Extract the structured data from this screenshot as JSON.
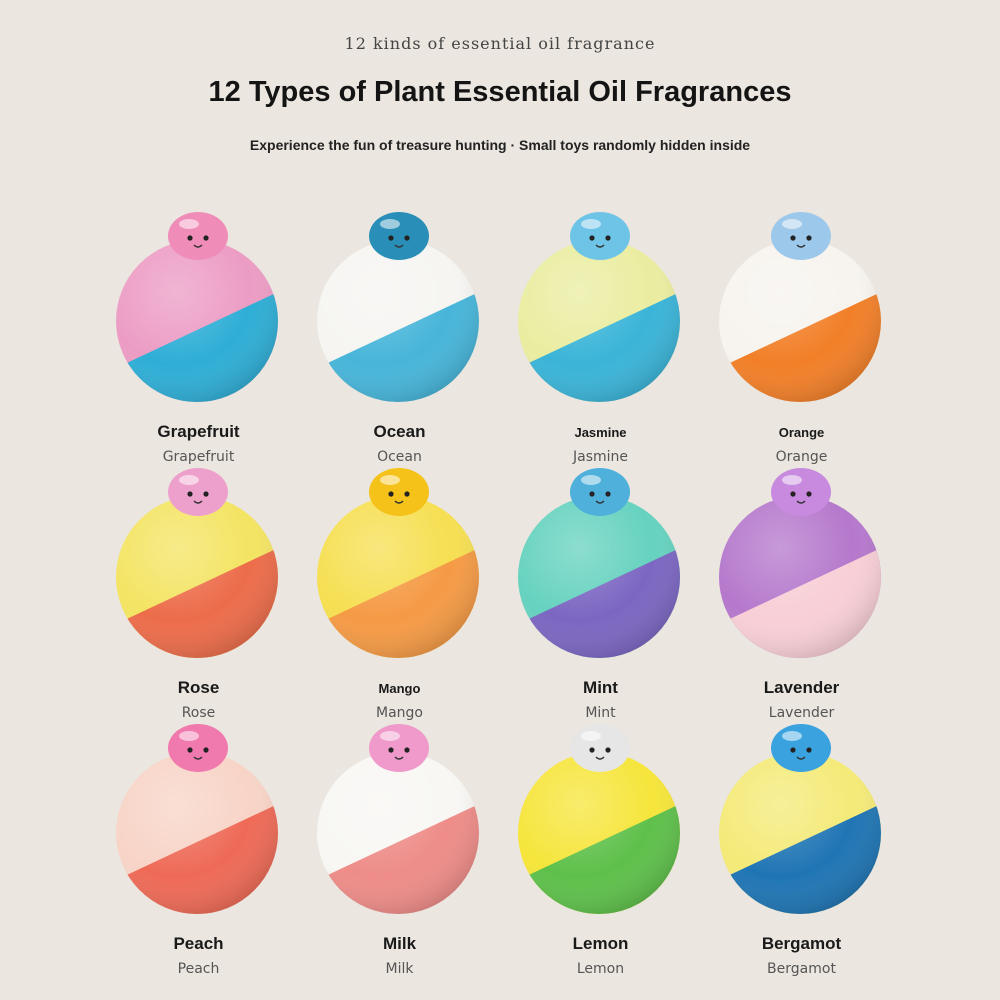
{
  "header": {
    "caption": "12 kinds of essential oil fragrance",
    "title": "12 Types of Plant Essential Oil Fragrances",
    "subtitle": "Experience the fun of treasure hunting · Small toys randomly hidden inside"
  },
  "products": [
    {
      "name": "Grapefruit",
      "name_secondary": "Grapefruit",
      "top_color": "#ec9cc4",
      "bottom_color": "#2eaed6",
      "toy": "pink-octopus",
      "toy_color": "#f08cb8"
    },
    {
      "name": "Ocean",
      "name_secondary": "Ocean",
      "top_color": "#f6f5f2",
      "bottom_color": "#47b5d9",
      "toy": "whale-shark",
      "toy_color": "#2a8fb8"
    },
    {
      "name": "Jasmine",
      "name_secondary": "Jasmine",
      "top_color": "#eaeda0",
      "bottom_color": "#3ab4d8",
      "toy": "dolphin",
      "toy_color": "#6ec4e6"
    },
    {
      "name": "Orange",
      "name_secondary": "Orange",
      "top_color": "#f7f4ef",
      "bottom_color": "#f27f28",
      "toy": "sea-bunny",
      "toy_color": "#9cc8ec"
    },
    {
      "name": "Rose",
      "name_secondary": "Rose",
      "top_color": "#f4e463",
      "bottom_color": "#ec6c4a",
      "toy": "hermit-crab-octopus",
      "toy_color": "#eda0cc"
    },
    {
      "name": "Mango",
      "name_secondary": "Mango",
      "top_color": "#f6df52",
      "bottom_color": "#f59a45",
      "toy": "yellow-fish",
      "toy_color": "#f5c21a"
    },
    {
      "name": "Mint",
      "name_secondary": "Mint",
      "top_color": "#66d2bf",
      "bottom_color": "#7c66c2",
      "toy": "narwhal",
      "toy_color": "#4fb0dc"
    },
    {
      "name": "Lavender",
      "name_secondary": "Lavender",
      "top_color": "#b578cc",
      "bottom_color": "#f8cfd6",
      "toy": "purple-whale",
      "toy_color": "#c88adf"
    },
    {
      "name": "Peach",
      "name_secondary": "Peach",
      "top_color": "#f8d4c7",
      "bottom_color": "#ee6a56",
      "toy": "pink-cat-octopus",
      "toy_color": "#f07aae"
    },
    {
      "name": "Milk",
      "name_secondary": "Milk",
      "top_color": "#f8f7f4",
      "bottom_color": "#ee8c88",
      "toy": "axolotl",
      "toy_color": "#f09acb"
    },
    {
      "name": "Lemon",
      "name_secondary": "Lemon",
      "top_color": "#f6e53b",
      "bottom_color": "#5ec04a",
      "toy": "seal",
      "toy_color": "#e6e6e6"
    },
    {
      "name": "Bergamot",
      "name_secondary": "Bergamot",
      "top_color": "#f4ea78",
      "bottom_color": "#1f75b4",
      "toy": "blue-dolphin",
      "toy_color": "#3aa2df"
    }
  ]
}
